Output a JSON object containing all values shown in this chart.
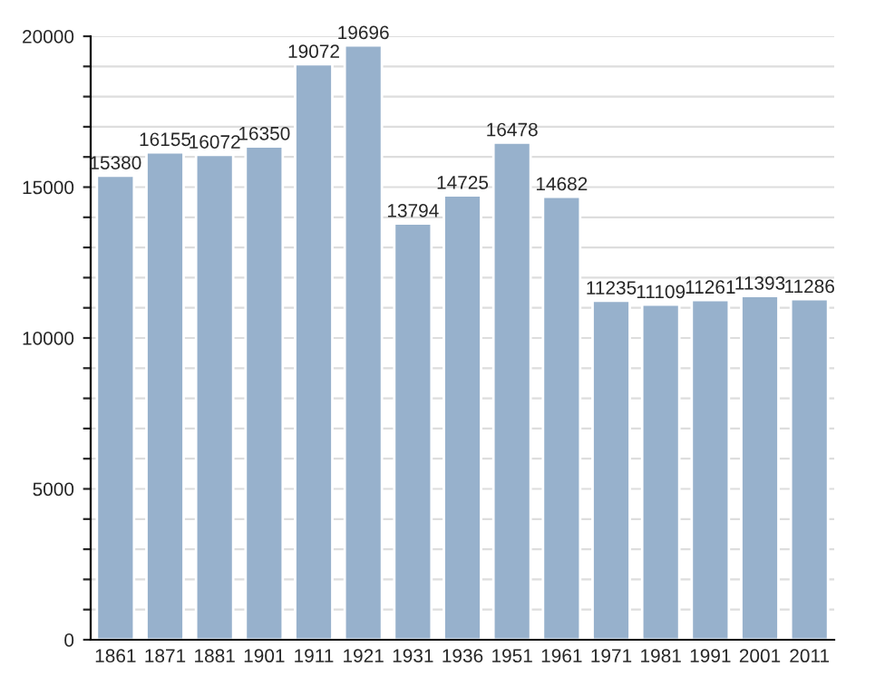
{
  "chart_data": {
    "type": "bar",
    "categories": [
      "1861",
      "1871",
      "1881",
      "1901",
      "1911",
      "1921",
      "1931",
      "1936",
      "1951",
      "1961",
      "1971",
      "1981",
      "1991",
      "2001",
      "2011"
    ],
    "values": [
      15380,
      16155,
      16072,
      16350,
      19072,
      19696,
      13794,
      14725,
      16478,
      14682,
      11235,
      11109,
      11261,
      11393,
      11286
    ],
    "color": "#97b1cc",
    "ylim": [
      0,
      20000
    ],
    "yticks": [
      0,
      {
        "value": 1000,
        "label": null
      },
      {
        "value": 2000,
        "label": null
      },
      {
        "value": 3000,
        "label": null
      },
      {
        "value": 4000,
        "label": null
      },
      5000,
      {
        "value": 6000,
        "label": null
      },
      {
        "value": 7000,
        "label": null
      },
      {
        "value": 8000,
        "label": null
      },
      {
        "value": 9000,
        "label": null
      },
      10000,
      {
        "value": 11000,
        "label": null
      },
      {
        "value": 12000,
        "label": null
      },
      {
        "value": 13000,
        "label": null
      },
      {
        "value": 14000,
        "label": null
      },
      15000,
      {
        "value": 16000,
        "label": null
      },
      {
        "value": 17000,
        "label": null
      },
      {
        "value": 18000,
        "label": null
      },
      {
        "value": 19000,
        "label": null
      },
      20000
    ],
    "grid": "y",
    "data_labels": true
  }
}
